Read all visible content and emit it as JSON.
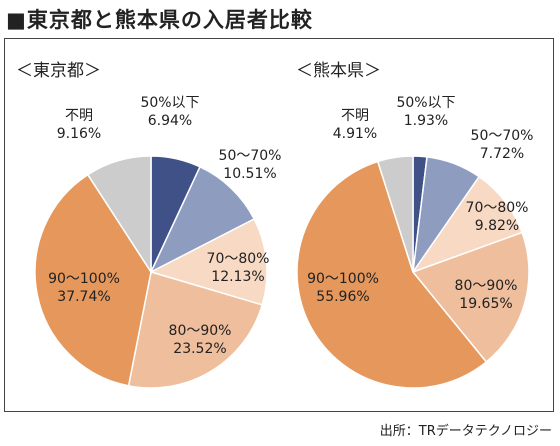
{
  "title": "■東京都と熊本県の入居者比較",
  "source": "出所：TRデータテクノロジー",
  "colors": {
    "50%以下": "#3f5186",
    "50～70%": "#8e9cc0",
    "70～80%": "#f7d9c4",
    "80～90%": "#efbe9c",
    "90～100%": "#e5975c",
    "不明": "#cccccc"
  },
  "chart_data": [
    {
      "type": "pie",
      "title": "＜東京都＞",
      "slices": [
        {
          "label": "50%以下",
          "value": 6.94,
          "value_label": "6.94%"
        },
        {
          "label": "50～70%",
          "value": 10.51,
          "value_label": "10.51%"
        },
        {
          "label": "70～80%",
          "value": 12.13,
          "value_label": "12.13%"
        },
        {
          "label": "80～90%",
          "value": 23.52,
          "value_label": "23.52%"
        },
        {
          "label": "90～100%",
          "value": 37.74,
          "value_label": "37.74%"
        },
        {
          "label": "不明",
          "value": 9.16,
          "value_label": "9.16%"
        }
      ]
    },
    {
      "type": "pie",
      "title": "＜熊本県＞",
      "slices": [
        {
          "label": "50%以下",
          "value": 1.93,
          "value_label": "1.93%"
        },
        {
          "label": "50～70%",
          "value": 7.72,
          "value_label": "7.72%"
        },
        {
          "label": "70～80%",
          "value": 9.82,
          "value_label": "9.82%"
        },
        {
          "label": "80～90%",
          "value": 19.65,
          "value_label": "19.65%"
        },
        {
          "label": "90～100%",
          "value": 55.96,
          "value_label": "55.96%"
        },
        {
          "label": "不明",
          "value": 4.91,
          "value_label": "4.91%"
        }
      ]
    }
  ]
}
